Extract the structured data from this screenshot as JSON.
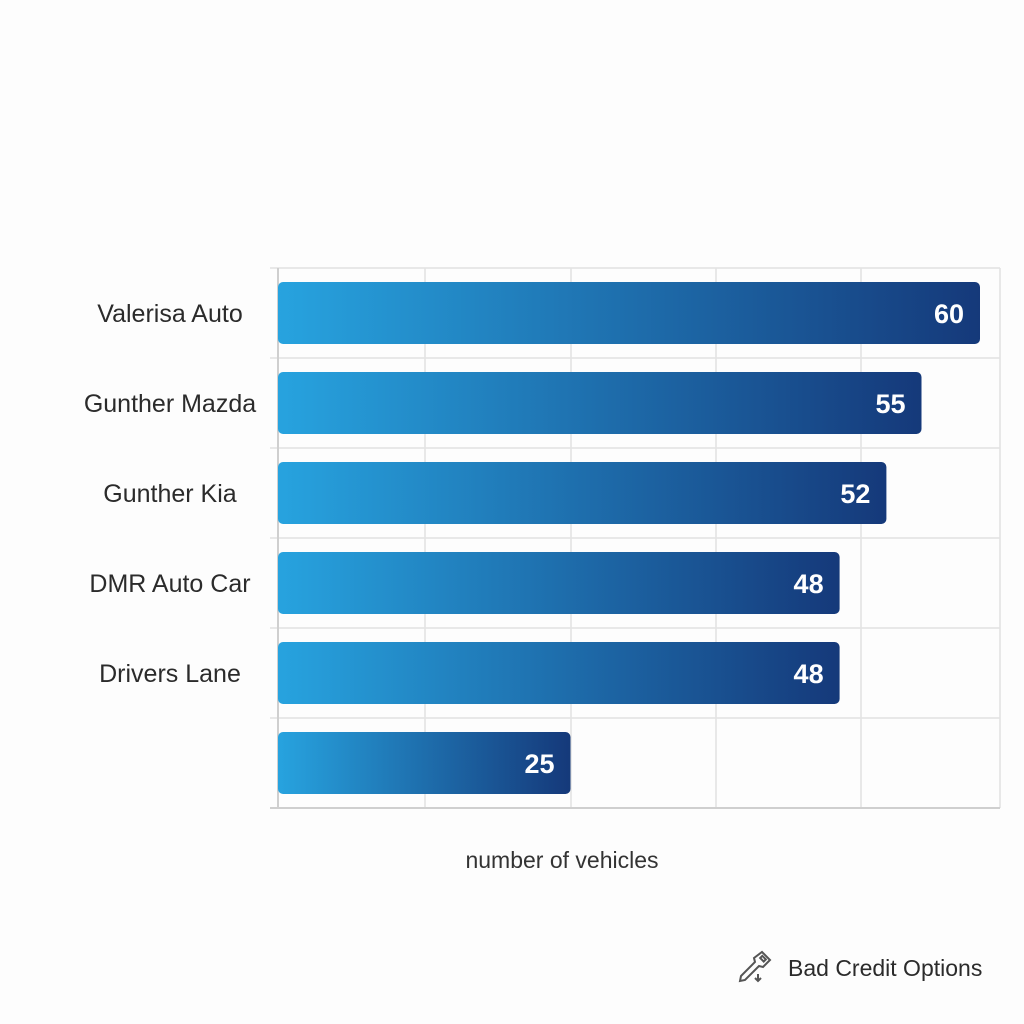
{
  "chart_data": {
    "type": "bar",
    "orientation": "horizontal",
    "categories": [
      "Valerisa Auto",
      "Gunther Mazda",
      "Gunther Kia",
      "DMR Auto Car",
      "Drivers Lane",
      ""
    ],
    "values": [
      60,
      55,
      52,
      48,
      48,
      25
    ],
    "title": "",
    "xlabel": "number of vehicles",
    "ylabel": "",
    "xlim": [
      0,
      60
    ],
    "grid": true,
    "data_labels": true,
    "colors": {
      "gradient_start": "#27a3df",
      "gradient_end": "#15397a",
      "grid": "#e2e2e2"
    }
  },
  "footer": {
    "icon": "key-icon",
    "label": "Bad Credit Options"
  }
}
